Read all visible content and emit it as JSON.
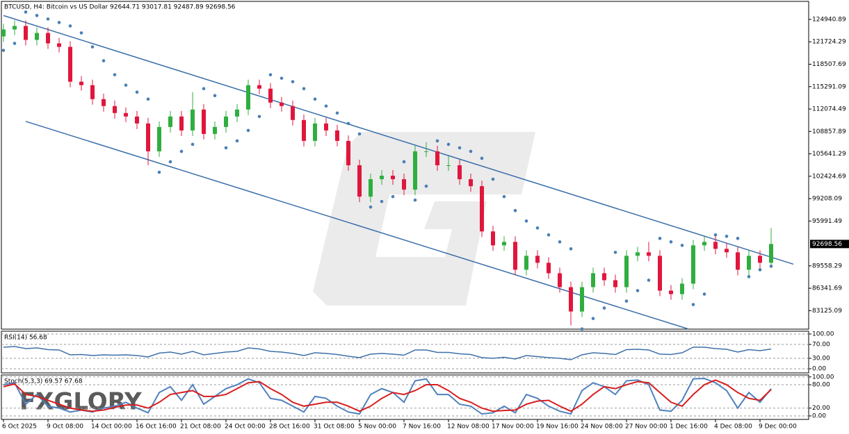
{
  "chart_data": [
    {
      "type": "candlestick",
      "title": "BTCUSD, H4:  Bitcoin vs US Dollar  92644.71 93017.81 92487.89 92698.56",
      "watermark": "FXGLORY",
      "categories": [
        "6 Oct 2025",
        null,
        null,
        null,
        "9 Oct 08:00",
        null,
        null,
        null,
        "14 Oct 00:00",
        null,
        null,
        null,
        "16 Oct 16:00",
        null,
        null,
        null,
        "21 Oct 08:00",
        null,
        null,
        null,
        "24 Oct 00:00",
        null,
        null,
        null,
        "28 Oct 16:00",
        null,
        null,
        null,
        "31 Oct 08:00",
        null,
        null,
        null,
        "5 Nov 00:00",
        null,
        null,
        null,
        "7 Nov 16:00",
        null,
        null,
        null,
        "12 Nov 08:00",
        null,
        null,
        null,
        "17 Nov 00:00",
        null,
        null,
        null,
        "19 Nov 16:00",
        null,
        null,
        null,
        "24 Nov 08:00",
        null,
        null,
        null,
        "27 Nov 00:00",
        null,
        null,
        null,
        "1 Dec 16:00",
        null,
        null,
        null,
        "4 Dec 08:00",
        null,
        null,
        null,
        "9 Dec 00:00",
        null
      ],
      "open": [
        122500,
        123500,
        124000,
        122000,
        123000,
        121500,
        121000,
        116000,
        115500,
        113500,
        112500,
        111500,
        111000,
        110000,
        106000,
        109500,
        111000,
        109000,
        112000,
        108500,
        109500,
        111000,
        112000,
        115500,
        115000,
        113000,
        112500,
        110500,
        107500,
        110000,
        109000,
        107500,
        104000,
        99500,
        102000,
        102500,
        102000,
        100500,
        106000,
        106000,
        104000,
        104000,
        102000,
        101000,
        94500,
        92500,
        93000,
        89000,
        91000,
        90000,
        88500,
        86500,
        83000,
        86500,
        88500,
        87500,
        86500,
        91000,
        91500,
        91000,
        86000,
        85500,
        87000,
        92500,
        93000,
        92000,
        91500,
        89000,
        91000,
        90000
      ],
      "high": [
        124300,
        124800,
        124800,
        123800,
        123800,
        122300,
        121800,
        116800,
        116300,
        114300,
        113300,
        112300,
        111800,
        110800,
        110300,
        111800,
        111800,
        114500,
        112800,
        110300,
        111800,
        112800,
        116300,
        116300,
        115800,
        113800,
        113300,
        111300,
        110800,
        110800,
        109800,
        108300,
        104800,
        102800,
        103300,
        103300,
        102800,
        106800,
        107300,
        106800,
        105300,
        104800,
        102800,
        101800,
        95300,
        93800,
        93800,
        91800,
        91800,
        90800,
        89300,
        87300,
        87300,
        89300,
        89300,
        88300,
        91800,
        92300,
        93000,
        91800,
        86800,
        87800,
        93300,
        93800,
        93800,
        92800,
        92300,
        91800,
        91800,
        95000
      ],
      "low": [
        121700,
        122700,
        121200,
        121200,
        120700,
        120200,
        115200,
        114700,
        112700,
        111700,
        110700,
        110200,
        109200,
        104000,
        105200,
        108700,
        108200,
        108200,
        107700,
        107700,
        108700,
        110200,
        111200,
        114200,
        112200,
        111700,
        109700,
        106700,
        106700,
        108200,
        106700,
        103200,
        98700,
        98700,
        101200,
        101200,
        99700,
        99700,
        105200,
        103200,
        103200,
        101200,
        100200,
        93700,
        91700,
        91700,
        88200,
        88200,
        89200,
        87700,
        85700,
        81000,
        82200,
        85700,
        86700,
        85700,
        85700,
        90200,
        90200,
        85200,
        84700,
        84700,
        86200,
        91700,
        91200,
        90700,
        88200,
        88200,
        89200,
        89700
      ],
      "close": [
        123500,
        124000,
        122000,
        123000,
        121500,
        121000,
        116000,
        115500,
        113500,
        112500,
        111500,
        111000,
        110000,
        106000,
        109500,
        111000,
        109000,
        112000,
        108500,
        109500,
        111000,
        112000,
        115500,
        115000,
        113000,
        112500,
        110500,
        107500,
        110000,
        109000,
        107500,
        104000,
        99500,
        102000,
        102500,
        102000,
        100500,
        106000,
        106000,
        104000,
        104000,
        102000,
        101000,
        94500,
        92500,
        93000,
        89000,
        91000,
        90000,
        88500,
        86500,
        83000,
        86500,
        88500,
        87500,
        86500,
        91000,
        91500,
        91000,
        86000,
        85500,
        87000,
        92500,
        93000,
        92000,
        91500,
        89000,
        91000,
        90000,
        92698.56
      ],
      "sar": [
        120500,
        121500,
        126000,
        125500,
        125000,
        124500,
        124000,
        123000,
        121000,
        119000,
        117000,
        115500,
        114500,
        113500,
        103000,
        104500,
        106000,
        107000,
        115000,
        114000,
        106500,
        107500,
        109000,
        111000,
        117000,
        116500,
        116000,
        115000,
        113500,
        112500,
        111500,
        110000,
        108500,
        98000,
        98800,
        99500,
        104500,
        99000,
        101000,
        107500,
        107000,
        106500,
        106000,
        105000,
        102000,
        99500,
        97500,
        96000,
        95000,
        94000,
        93000,
        92000,
        80500,
        82000,
        83500,
        91500,
        84500,
        86000,
        87500,
        93500,
        93000,
        92500,
        84000,
        85500,
        94000,
        93800,
        93500,
        88000,
        89000,
        89500
      ],
      "up_color": "#2fae3f",
      "down_color": "#e0163c",
      "sar_color": "#4a7fb5",
      "last_price": 92698.56,
      "trendlines": [
        {
          "x0": 0,
          "y0": 125500,
          "x1": 71,
          "y1": 89800,
          "color": "#3a6ea8"
        },
        {
          "x0": 2,
          "y0": 110300,
          "x1": 61.6,
          "y1": 80470,
          "color": "#3a6ea8"
        }
      ],
      "ylim": [
        80470,
        127530
      ],
      "yticks": [
        124940.89,
        121724.29,
        118507.69,
        115291.09,
        112074.49,
        108857.89,
        105641.29,
        102424.69,
        99208.09,
        95991.49,
        89558.29,
        86341.69,
        83125.09
      ]
    },
    {
      "type": "line",
      "title": "RSI(14) 56.68",
      "color": "#3e6fa8",
      "values": [
        62,
        64,
        58,
        60,
        55,
        54,
        40,
        41,
        38,
        40,
        39,
        40,
        38,
        34,
        45,
        48,
        42,
        50,
        40,
        44,
        48,
        50,
        60,
        57,
        50,
        48,
        44,
        38,
        46,
        44,
        41,
        36,
        32,
        42,
        44,
        42,
        39,
        54,
        54,
        47,
        47,
        43,
        41,
        32,
        30,
        33,
        28,
        38,
        35,
        32,
        30,
        26,
        40,
        46,
        44,
        41,
        55,
        56,
        54,
        42,
        41,
        46,
        62,
        62,
        58,
        56,
        48,
        55,
        52,
        56.68
      ],
      "ylim": [
        -12,
        108
      ],
      "yticks": [
        {
          "value": 100,
          "label": "100.00"
        },
        {
          "value": 70,
          "label": "70.00"
        },
        {
          "value": 30,
          "label": "30.00"
        },
        {
          "value": 0,
          "label": "0.00"
        }
      ]
    },
    {
      "type": "line",
      "title": "Stoch(5,3,3) 69.57 67.68",
      "series": [
        {
          "color": "#4f81bd",
          "values": [
            80,
            85,
            30,
            55,
            25,
            20,
            10,
            15,
            10,
            20,
            25,
            35,
            20,
            8,
            60,
            75,
            40,
            80,
            30,
            50,
            70,
            80,
            95,
            85,
            45,
            40,
            25,
            10,
            50,
            45,
            25,
            10,
            5,
            55,
            70,
            60,
            35,
            90,
            95,
            55,
            55,
            30,
            25,
            5,
            8,
            25,
            8,
            55,
            45,
            25,
            12,
            5,
            65,
            85,
            75,
            55,
            90,
            92,
            80,
            15,
            12,
            40,
            95,
            96,
            85,
            65,
            20,
            60,
            35,
            69.57
          ]
        },
        {
          "color": "#d81e1e",
          "values": [
            75,
            82,
            55,
            50,
            40,
            30,
            20,
            15,
            12,
            15,
            22,
            28,
            28,
            20,
            35,
            55,
            60,
            65,
            50,
            50,
            55,
            70,
            85,
            88,
            70,
            55,
            35,
            25,
            30,
            35,
            35,
            25,
            12,
            25,
            45,
            60,
            55,
            65,
            80,
            80,
            65,
            45,
            35,
            20,
            12,
            14,
            15,
            30,
            38,
            40,
            25,
            12,
            30,
            55,
            75,
            70,
            80,
            88,
            85,
            60,
            35,
            25,
            55,
            80,
            92,
            80,
            60,
            45,
            40,
            67.68
          ]
        }
      ],
      "ylim": [
        -9,
        105
      ],
      "yticks": [
        {
          "value": 100,
          "label": "100.00"
        },
        {
          "value": 80,
          "label": "80.00"
        },
        {
          "value": 20,
          "label": "20.00"
        },
        {
          "value": 0,
          "label": "0.00"
        }
      ]
    }
  ]
}
